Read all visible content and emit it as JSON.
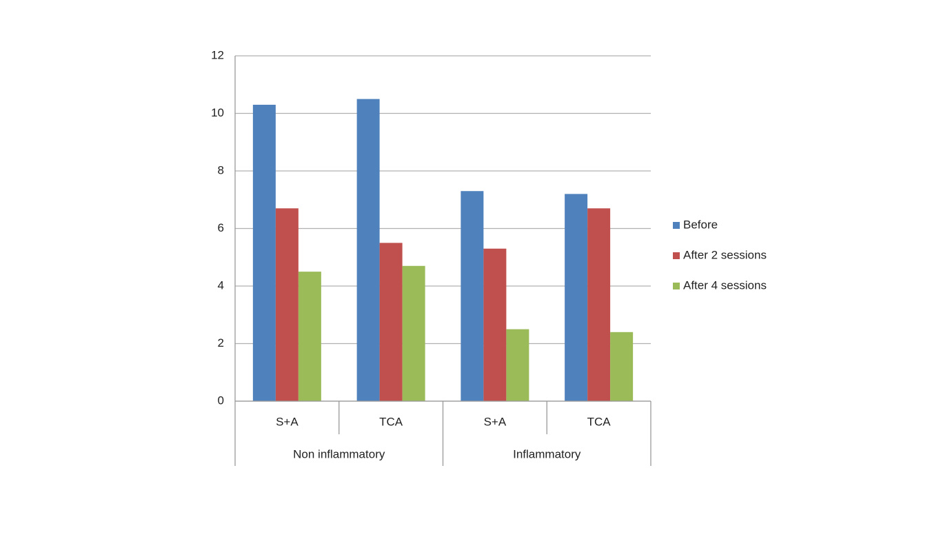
{
  "chart_data": {
    "type": "bar",
    "groups": [
      {
        "name": "Non inflammatory",
        "categories": [
          "S+A",
          "TCA"
        ]
      },
      {
        "name": "Inflammatory",
        "categories": [
          "S+A",
          "TCA"
        ]
      }
    ],
    "series": [
      {
        "name": "Before",
        "color": "#4f81bd",
        "values": [
          10.3,
          10.5,
          7.3,
          7.2
        ]
      },
      {
        "name": "After 2 sessions",
        "color": "#c0504d",
        "values": [
          6.7,
          5.5,
          5.3,
          6.7
        ]
      },
      {
        "name": "After 4 sessions",
        "color": "#9bbb59",
        "values": [
          4.5,
          4.7,
          2.5,
          2.4
        ]
      }
    ],
    "ylim": [
      0,
      12
    ],
    "yticks": [
      0,
      2,
      4,
      6,
      8,
      10,
      12
    ],
    "grid": true,
    "legend": "right"
  }
}
